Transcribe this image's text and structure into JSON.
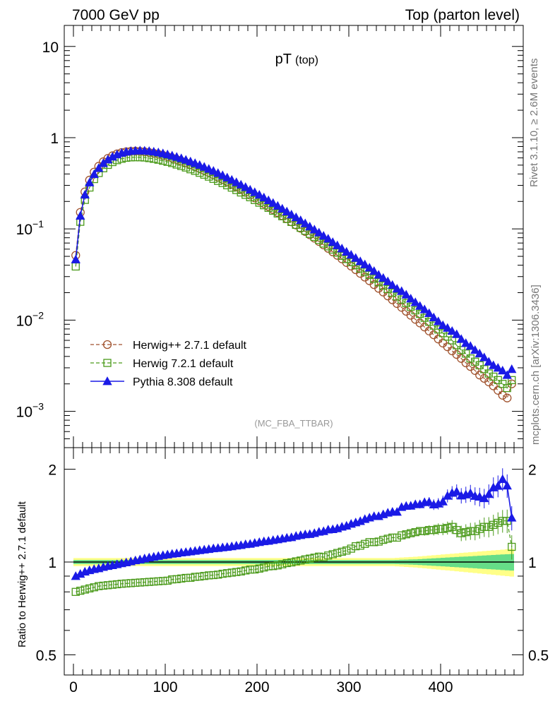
{
  "header": {
    "left": "7000 GeV pp",
    "right": "Top (parton level)"
  },
  "side_labels": {
    "rivet": "Rivet 3.1.10, ≥ 2.6M events",
    "mcplots": "mcplots.cern.ch [arXiv:1306.3436]"
  },
  "main": {
    "title_main": "pT",
    "title_sub": "(top)",
    "watermark": "(MC_FBA_TTBAR)",
    "yticks": [
      {
        "v": 0.001,
        "base": "10",
        "exp": "−3"
      },
      {
        "v": 0.01,
        "base": "10",
        "exp": "−2"
      },
      {
        "v": 0.1,
        "base": "10",
        "exp": "−1"
      },
      {
        "v": 1,
        "base": "1",
        "exp": ""
      },
      {
        "v": 10,
        "base": "10",
        "exp": ""
      }
    ]
  },
  "legend": [
    {
      "label": "Herwig++ 2.7.1 default"
    },
    {
      "label": "Herwig 7.2.1 default"
    },
    {
      "label": "Pythia 8.308 default"
    }
  ],
  "ratio": {
    "ylabel": "Ratio to Herwig++ 2.7.1 default",
    "yticks": [
      "0.5",
      "1",
      "2"
    ]
  },
  "xticks": [
    "0",
    "100",
    "200",
    "300",
    "400"
  ],
  "colors": {
    "herwigpp": "#a0522d",
    "herwig7": "#4a9a1a",
    "pythia": "#1a1ae6",
    "band_inner": "#66dd88",
    "band_outer": "#ffff88"
  },
  "chart_data": [
    {
      "type": "scatter",
      "panel": "main",
      "xlim": [
        -10,
        490
      ],
      "ylim": [
        0.0004,
        17
      ],
      "yscale": "log",
      "x": [
        2.5,
        7.5,
        12.5,
        17.5,
        22.5,
        27.5,
        32.5,
        37.5,
        42.5,
        47.5,
        52.5,
        57.5,
        62.5,
        67.5,
        72.5,
        77.5,
        82.5,
        87.5,
        92.5,
        97.5,
        102.5,
        107.5,
        112.5,
        117.5,
        122.5,
        127.5,
        132.5,
        137.5,
        142.5,
        147.5,
        152.5,
        157.5,
        162.5,
        167.5,
        172.5,
        177.5,
        182.5,
        187.5,
        192.5,
        197.5,
        202.5,
        207.5,
        212.5,
        217.5,
        222.5,
        227.5,
        232.5,
        237.5,
        242.5,
        247.5,
        252.5,
        257.5,
        262.5,
        267.5,
        272.5,
        277.5,
        282.5,
        287.5,
        292.5,
        297.5,
        302.5,
        307.5,
        312.5,
        317.5,
        322.5,
        327.5,
        332.5,
        337.5,
        342.5,
        347.5,
        352.5,
        357.5,
        362.5,
        367.5,
        372.5,
        377.5,
        382.5,
        387.5,
        392.5,
        397.5,
        402.5,
        407.5,
        412.5,
        417.5,
        422.5,
        427.5,
        432.5,
        437.5,
        442.5,
        447.5,
        452.5,
        457.5,
        462.5,
        467.5,
        472.5,
        477.5
      ],
      "series": [
        {
          "name": "Herwig++ 2.7.1 default",
          "values": [
            0.0513,
            0.1519,
            0.2547,
            0.3428,
            0.4192,
            0.4864,
            0.5446,
            0.5937,
            0.6336,
            0.6647,
            0.6872,
            0.7019,
            0.7096,
            0.7114,
            0.7081,
            0.7006,
            0.6895,
            0.6754,
            0.6588,
            0.6402,
            0.6201,
            0.5987,
            0.5765,
            0.5536,
            0.5303,
            0.5067,
            0.4831,
            0.4595,
            0.4362,
            0.4132,
            0.3907,
            0.3687,
            0.3474,
            0.3267,
            0.3068,
            0.2876,
            0.2692,
            0.2516,
            0.2348,
            0.2189,
            0.2038,
            0.1894,
            0.1759,
            0.1632,
            0.1512,
            0.1399,
            0.1294,
            0.1195,
            0.1103,
            0.1017,
            0.0936,
            0.0861,
            0.0792,
            0.0727,
            0.0667,
            0.0612,
            0.056,
            0.0513,
            0.0469,
            0.0428,
            0.0391,
            0.0357,
            0.0325,
            0.0296,
            0.027,
            0.0245,
            0.0223,
            0.0203,
            0.0184,
            0.0167,
            0.0152,
            0.0138,
            0.0125,
            0.0113,
            0.0102,
            0.0093,
            0.0084,
            0.0076,
            0.0069,
            0.0062,
            0.0056,
            0.0051,
            0.0046,
            0.0042,
            0.0038,
            0.0034,
            0.0031,
            0.0028,
            0.0025,
            0.0023,
            0.0021,
            0.0019,
            0.0017,
            0.0015,
            0.0014,
            0.002
          ]
        },
        {
          "name": "Herwig 7.2.1 default",
          "values": [
            0.0387,
            0.1196,
            0.208,
            0.2841,
            0.3519,
            0.4098,
            0.4619,
            0.5034,
            0.5401,
            0.5668,
            0.5866,
            0.602,
            0.6083,
            0.6105,
            0.6097,
            0.6062,
            0.5969,
            0.5863,
            0.5735,
            0.5588,
            0.5426,
            0.5274,
            0.5075,
            0.4893,
            0.4708,
            0.4506,
            0.4324,
            0.4122,
            0.3928,
            0.3741,
            0.3537,
            0.3357,
            0.3183,
            0.3007,
            0.2834,
            0.2668,
            0.2509,
            0.2364,
            0.2223,
            0.2072,
            0.1938,
            0.1818,
            0.1702,
            0.1582,
            0.1475,
            0.1376,
            0.1284,
            0.1192,
            0.1109,
            0.1028,
            0.0955,
            0.0883,
            0.0818,
            0.0757,
            0.0692,
            0.0644,
            0.0593,
            0.0549,
            0.0506,
            0.0467,
            0.0432,
            0.0401,
            0.0368,
            0.0339,
            0.0313,
            0.0284,
            0.026,
            0.0239,
            0.0219,
            0.02,
            0.0182,
            0.0168,
            0.0154,
            0.014,
            0.0128,
            0.0117,
            0.0106,
            0.0096,
            0.0087,
            0.0079,
            0.0072,
            0.0066,
            0.006,
            0.0053,
            0.0047,
            0.0043,
            0.0038,
            0.0035,
            0.0032,
            0.0029,
            0.0026,
            0.0024,
            0.0022,
            0.002,
            0.0018,
            0.0022
          ]
        },
        {
          "name": "Pythia 8.308 default",
          "values": [
            0.0462,
            0.139,
            0.2369,
            0.3223,
            0.3974,
            0.464,
            0.5245,
            0.5759,
            0.6184,
            0.6532,
            0.6804,
            0.7,
            0.7123,
            0.7197,
            0.7218,
            0.7193,
            0.7129,
            0.7027,
            0.689,
            0.6734,
            0.6554,
            0.6362,
            0.6153,
            0.594,
            0.5712,
            0.5484,
            0.5253,
            0.5019,
            0.4786,
            0.4549,
            0.4325,
            0.4093,
            0.3874,
            0.3655,
            0.3448,
            0.3249,
            0.3054,
            0.2874,
            0.2688,
            0.2523,
            0.2365,
            0.2209,
            0.2059,
            0.1923,
            0.179,
            0.1666,
            0.155,
            0.1438,
            0.134,
            0.1243,
            0.115,
            0.1061,
            0.0983,
            0.0911,
            0.084,
            0.078,
            0.0715,
            0.066,
            0.061,
            0.0561,
            0.052,
            0.048,
            0.0441,
            0.0408,
            0.0376,
            0.0345,
            0.0314,
            0.029,
            0.0266,
            0.0243,
            0.0221,
            0.0208,
            0.019,
            0.0172,
            0.0157,
            0.0143,
            0.0131,
            0.0119,
            0.0107,
            0.0097,
            0.0088,
            0.0082,
            0.0076,
            0.007,
            0.0062,
            0.0056,
            0.0052,
            0.0047,
            0.0043,
            0.0039,
            0.0035,
            0.0032,
            0.003,
            0.0028,
            0.0025,
            0.0029
          ]
        }
      ]
    },
    {
      "type": "scatter",
      "panel": "ratio",
      "xlim": [
        -10,
        490
      ],
      "ylim": [
        0.43,
        2.35
      ],
      "yscale": "log",
      "reference_line": 1,
      "x": [
        2.5,
        7.5,
        12.5,
        17.5,
        22.5,
        27.5,
        32.5,
        37.5,
        42.5,
        47.5,
        52.5,
        57.5,
        62.5,
        67.5,
        72.5,
        77.5,
        82.5,
        87.5,
        92.5,
        97.5,
        102.5,
        107.5,
        112.5,
        117.5,
        122.5,
        127.5,
        132.5,
        137.5,
        142.5,
        147.5,
        152.5,
        157.5,
        162.5,
        167.5,
        172.5,
        177.5,
        182.5,
        187.5,
        192.5,
        197.5,
        202.5,
        207.5,
        212.5,
        217.5,
        222.5,
        227.5,
        232.5,
        237.5,
        242.5,
        247.5,
        252.5,
        257.5,
        262.5,
        267.5,
        272.5,
        277.5,
        282.5,
        287.5,
        292.5,
        297.5,
        302.5,
        307.5,
        312.5,
        317.5,
        322.5,
        327.5,
        332.5,
        337.5,
        342.5,
        347.5,
        352.5,
        357.5,
        362.5,
        367.5,
        372.5,
        377.5,
        382.5,
        387.5,
        392.5,
        397.5,
        402.5,
        407.5,
        412.5,
        417.5,
        422.5,
        427.5,
        432.5,
        437.5,
        442.5,
        447.5,
        452.5,
        457.5,
        462.5,
        467.5,
        472.5,
        477.5
      ],
      "band_inner": [
        0.015,
        0.015,
        0.015,
        0.015,
        0.015,
        0.015,
        0.015,
        0.015,
        0.015,
        0.015,
        0.015,
        0.015,
        0.015,
        0.015,
        0.015,
        0.015,
        0.015,
        0.015,
        0.015,
        0.015,
        0.015,
        0.015,
        0.015,
        0.015,
        0.015,
        0.015,
        0.015,
        0.015,
        0.015,
        0.015,
        0.015,
        0.015,
        0.015,
        0.015,
        0.015,
        0.015,
        0.015,
        0.015,
        0.015,
        0.015,
        0.015,
        0.015,
        0.015,
        0.015,
        0.015,
        0.015,
        0.015,
        0.015,
        0.015,
        0.015,
        0.015,
        0.015,
        0.015,
        0.015,
        0.015,
        0.015,
        0.015,
        0.015,
        0.015,
        0.015,
        0.015,
        0.015,
        0.015,
        0.015,
        0.015,
        0.015,
        0.015,
        0.015,
        0.015,
        0.015,
        0.016,
        0.017,
        0.018,
        0.019,
        0.02,
        0.022,
        0.024,
        0.026,
        0.028,
        0.03,
        0.032,
        0.034,
        0.036,
        0.038,
        0.04,
        0.042,
        0.044,
        0.046,
        0.048,
        0.05,
        0.052,
        0.054,
        0.056,
        0.058,
        0.06,
        0.062
      ],
      "band_outer": [
        0.03,
        0.03,
        0.03,
        0.03,
        0.03,
        0.03,
        0.03,
        0.03,
        0.03,
        0.03,
        0.03,
        0.03,
        0.03,
        0.03,
        0.03,
        0.03,
        0.03,
        0.03,
        0.03,
        0.03,
        0.03,
        0.03,
        0.03,
        0.03,
        0.03,
        0.03,
        0.03,
        0.03,
        0.03,
        0.03,
        0.03,
        0.03,
        0.03,
        0.03,
        0.03,
        0.03,
        0.03,
        0.03,
        0.03,
        0.03,
        0.03,
        0.03,
        0.03,
        0.03,
        0.03,
        0.03,
        0.03,
        0.03,
        0.03,
        0.03,
        0.03,
        0.03,
        0.03,
        0.03,
        0.03,
        0.03,
        0.03,
        0.03,
        0.03,
        0.03,
        0.03,
        0.03,
        0.03,
        0.03,
        0.03,
        0.03,
        0.03,
        0.03,
        0.03,
        0.03,
        0.032,
        0.034,
        0.036,
        0.038,
        0.04,
        0.043,
        0.046,
        0.049,
        0.052,
        0.055,
        0.058,
        0.061,
        0.064,
        0.067,
        0.07,
        0.073,
        0.076,
        0.079,
        0.082,
        0.085,
        0.088,
        0.091,
        0.094,
        0.097,
        0.1,
        0.103
      ],
      "series": [
        {
          "name": "Herwig 7.2.1 default",
          "values": [
            0.8,
            0.807,
            0.814,
            0.821,
            0.828,
            0.835,
            0.838,
            0.841,
            0.844,
            0.847,
            0.85,
            0.852,
            0.854,
            0.856,
            0.858,
            0.86,
            0.862,
            0.864,
            0.866,
            0.868,
            0.87,
            0.878,
            0.88,
            0.884,
            0.888,
            0.889,
            0.895,
            0.897,
            0.901,
            0.905,
            0.907,
            0.91,
            0.916,
            0.92,
            0.924,
            0.928,
            0.932,
            0.939,
            0.945,
            0.946,
            0.952,
            0.96,
            0.968,
            0.97,
            0.975,
            0.983,
            0.992,
            0.997,
            1.005,
            1.011,
            1.02,
            1.026,
            1.033,
            1.041,
            1.037,
            1.05,
            1.06,
            1.07,
            1.08,
            1.09,
            1.105,
            1.125,
            1.13,
            1.145,
            1.16,
            1.16,
            1.165,
            1.18,
            1.19,
            1.2,
            1.2,
            1.22,
            1.23,
            1.24,
            1.25,
            1.26,
            1.26,
            1.27,
            1.27,
            1.28,
            1.28,
            1.29,
            1.3,
            1.27,
            1.24,
            1.25,
            1.26,
            1.26,
            1.28,
            1.3,
            1.3,
            1.32,
            1.34,
            1.36,
            1.36,
            1.12
          ]
        },
        {
          "name": "Pythia 8.308 default",
          "values": [
            0.9,
            0.915,
            0.93,
            0.94,
            0.948,
            0.954,
            0.963,
            0.97,
            0.976,
            0.983,
            0.99,
            0.997,
            1.004,
            1.012,
            1.019,
            1.027,
            1.034,
            1.04,
            1.046,
            1.052,
            1.057,
            1.063,
            1.067,
            1.073,
            1.077,
            1.082,
            1.087,
            1.092,
            1.097,
            1.101,
            1.107,
            1.11,
            1.115,
            1.119,
            1.124,
            1.13,
            1.134,
            1.142,
            1.145,
            1.153,
            1.16,
            1.167,
            1.171,
            1.178,
            1.184,
            1.191,
            1.198,
            1.203,
            1.215,
            1.222,
            1.229,
            1.232,
            1.241,
            1.253,
            1.259,
            1.274,
            1.277,
            1.286,
            1.301,
            1.311,
            1.33,
            1.344,
            1.357,
            1.378,
            1.393,
            1.408,
            1.408,
            1.428,
            1.445,
            1.455,
            1.454,
            1.507,
            1.52,
            1.522,
            1.539,
            1.539,
            1.563,
            1.566,
            1.536,
            1.546,
            1.571,
            1.64,
            1.676,
            1.693,
            1.642,
            1.655,
            1.673,
            1.638,
            1.628,
            1.61,
            1.66,
            1.745,
            1.765,
            1.857,
            1.769,
            1.392
          ]
        }
      ]
    }
  ]
}
